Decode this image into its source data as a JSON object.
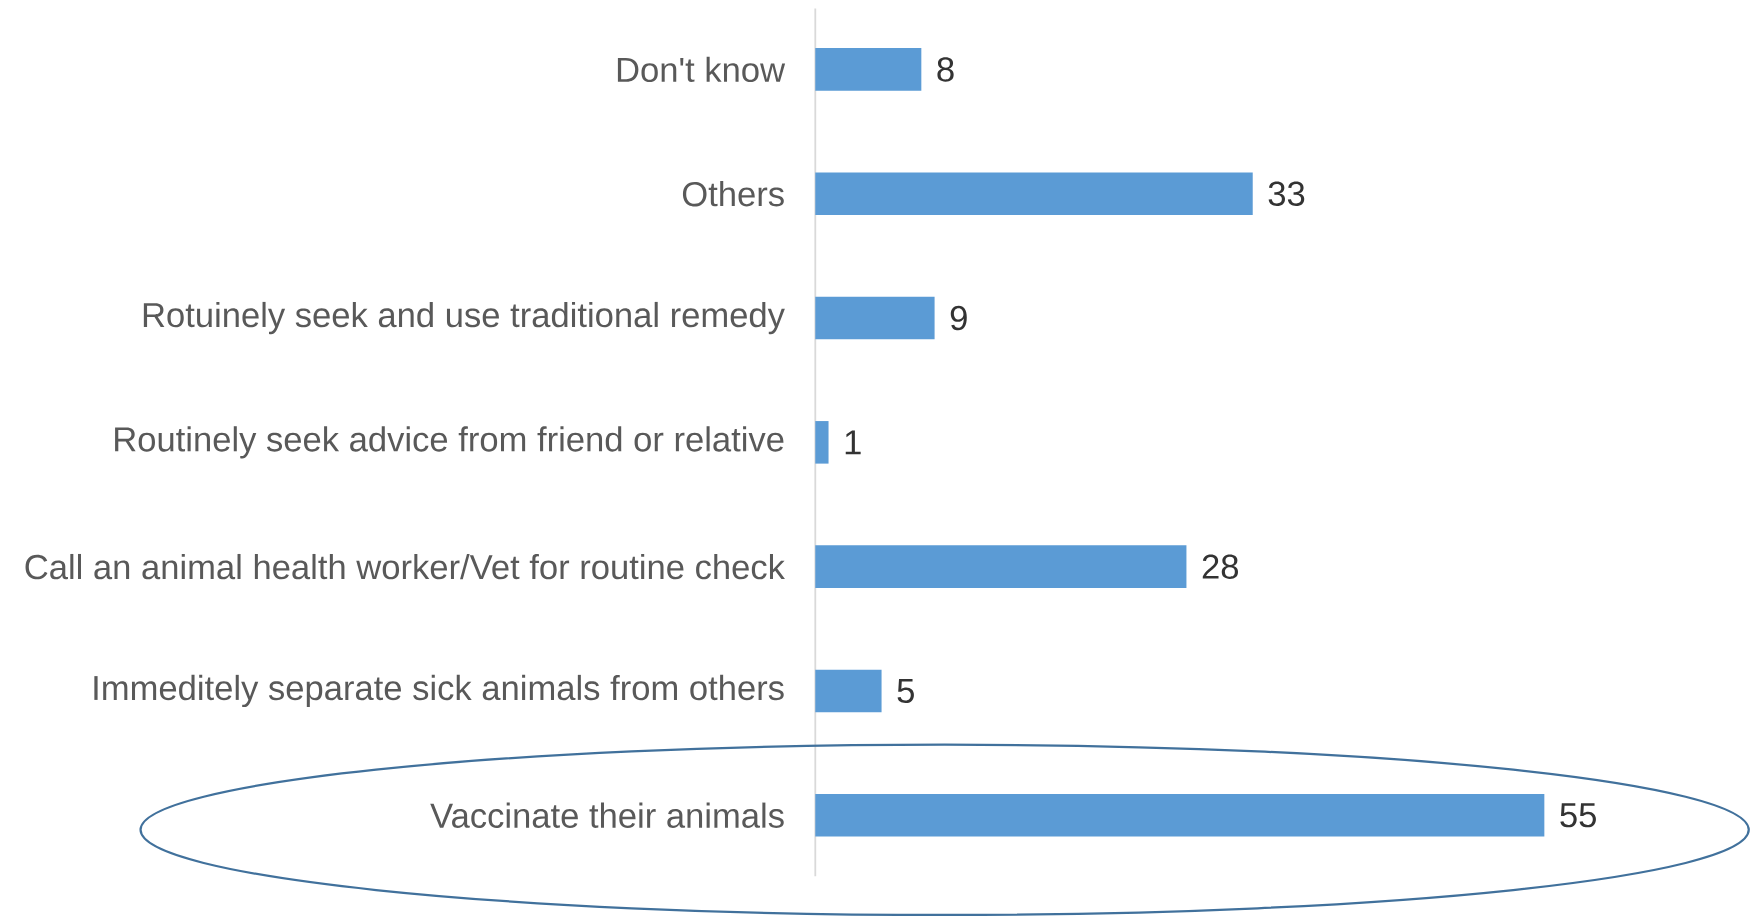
{
  "chart_data": {
    "type": "bar",
    "orientation": "horizontal",
    "categories": [
      "Don't know",
      "Others",
      "Rotuinely seek and use traditional remedy",
      "Routinely seek advice from friend or relative",
      "Call an animal health worker/Vet for routine check",
      "Immeditely separate sick animals from others",
      "Vaccinate their animals"
    ],
    "values": [
      8,
      33,
      9,
      1,
      28,
      5,
      55
    ],
    "color": "#5b9bd5",
    "data_labels": true,
    "tick_labels": "y"
  }
}
